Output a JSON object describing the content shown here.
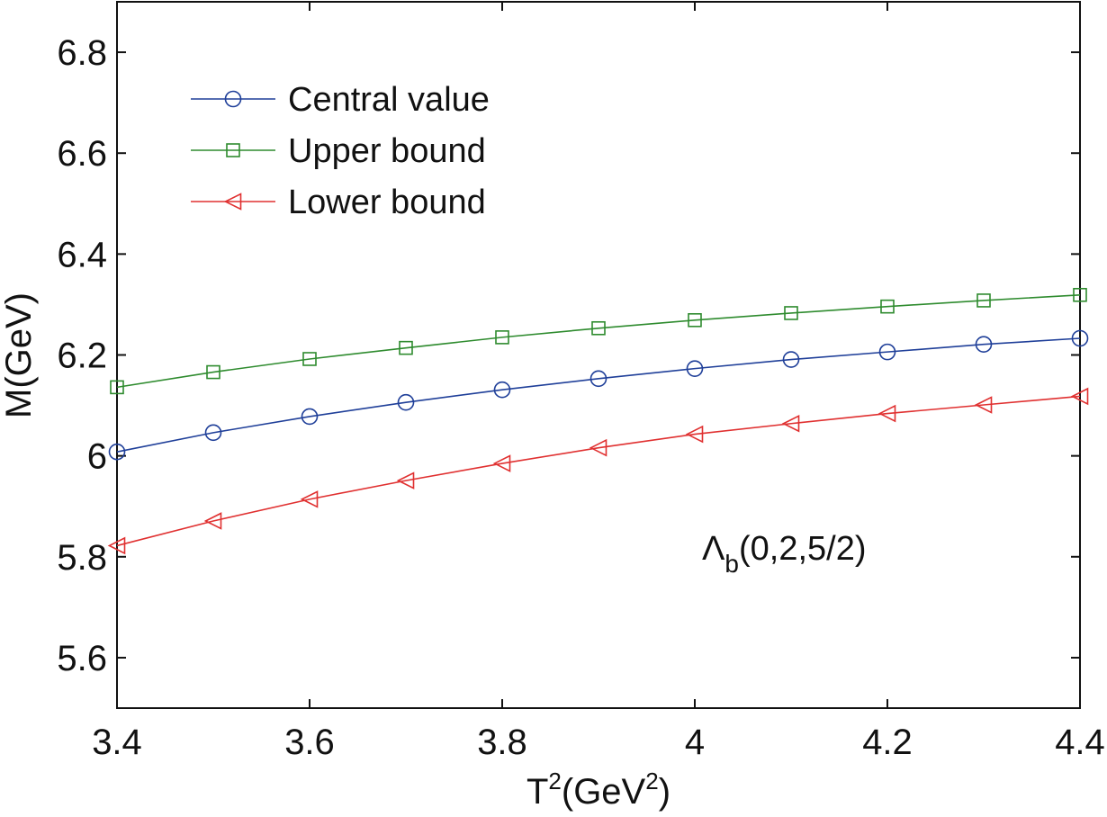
{
  "chart_data": {
    "type": "line",
    "x": [
      3.4,
      3.5,
      3.6,
      3.7,
      3.8,
      3.9,
      4.0,
      4.1,
      4.2,
      4.3,
      4.4
    ],
    "xlim": [
      3.4,
      4.4
    ],
    "ylim": [
      5.5,
      6.9
    ],
    "xticks": [
      3.4,
      3.6,
      3.8,
      4.0,
      4.2,
      4.4
    ],
    "xtick_labels": [
      "3.4",
      "3.6",
      "3.8",
      "4",
      "4.2",
      "4.4"
    ],
    "yticks": [
      5.6,
      5.8,
      6.0,
      6.2,
      6.4,
      6.6,
      6.8
    ],
    "ytick_labels": [
      "5.6",
      "5.8",
      "6",
      "6.2",
      "6.4",
      "6.6",
      "6.8"
    ],
    "xlabel": {
      "base": "T",
      "sup": "2",
      "unit_open": "(GeV",
      "unit_sup": "2",
      "unit_close": ")"
    },
    "ylabel": "M(GeV)",
    "grid": false,
    "legend_position": "top-left",
    "annotation": {
      "symbol": "Λ",
      "sub": "b",
      "rest": "(0,2,5/2)"
    },
    "series": [
      {
        "name": "Central value",
        "marker": "circle",
        "color": "#1f3f99",
        "values": [
          6.008,
          6.046,
          6.078,
          6.106,
          6.131,
          6.153,
          6.173,
          6.191,
          6.206,
          6.221,
          6.233
        ]
      },
      {
        "name": "Upper bound",
        "marker": "square",
        "color": "#2e8b2e",
        "values": [
          6.136,
          6.166,
          6.192,
          6.214,
          6.235,
          6.253,
          6.269,
          6.283,
          6.296,
          6.308,
          6.319
        ]
      },
      {
        "name": "Lower bound",
        "marker": "triangle-left",
        "color": "#e03030",
        "values": [
          5.822,
          5.871,
          5.914,
          5.951,
          5.985,
          6.016,
          6.043,
          6.064,
          6.084,
          6.101,
          6.118
        ]
      }
    ]
  }
}
